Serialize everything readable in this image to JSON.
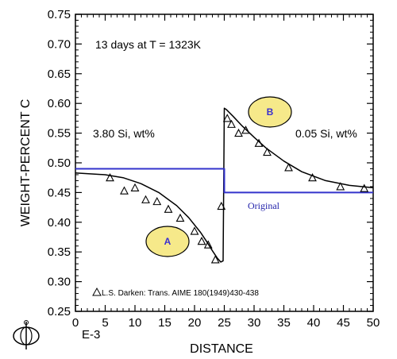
{
  "chart_data": {
    "type": "line",
    "xlabel": "DISTANCE",
    "x_scale_label": "E-3",
    "ylabel": "WEIGHT-PERCENT C",
    "xlim": [
      0,
      50
    ],
    "ylim": [
      0.25,
      0.75
    ],
    "x_ticks": [
      "0",
      "5",
      "10",
      "15",
      "20",
      "25",
      "30",
      "35",
      "40",
      "45",
      "50"
    ],
    "y_ticks": [
      "0.25",
      "0.30",
      "0.35",
      "0.40",
      "0.45",
      "0.50",
      "0.55",
      "0.60",
      "0.65",
      "0.70",
      "0.75"
    ],
    "series": [
      {
        "name": "",
        "style": "curve",
        "color": "#000000",
        "x": [
          0,
          5,
          8,
          11,
          14,
          17,
          19,
          21,
          22,
          23,
          23.8,
          24.4,
          24.8,
          25,
          25.3,
          26.5,
          28,
          30,
          32,
          35,
          38,
          42,
          46,
          50
        ],
        "y": [
          0.483,
          0.48,
          0.475,
          0.465,
          0.45,
          0.428,
          0.408,
          0.383,
          0.368,
          0.352,
          0.34,
          0.333,
          0.335,
          0.592,
          0.59,
          0.578,
          0.562,
          0.543,
          0.525,
          0.503,
          0.485,
          0.47,
          0.462,
          0.458
        ]
      },
      {
        "name": "",
        "style": "step",
        "color": "#3333cc",
        "x": [
          0,
          25,
          25,
          50
        ],
        "y": [
          0.49,
          0.49,
          0.45,
          0.45
        ]
      },
      {
        "name": "L.S. Darken: Trans. AIME 180(1949)430-438",
        "style": "triangles",
        "color": "#000000",
        "x": [
          5.8,
          8.2,
          10,
          11.8,
          13.7,
          15.6,
          17.6,
          20,
          21.2,
          22.3,
          23.5,
          24.5,
          25.5,
          26.2,
          27.4,
          28.6,
          30.8,
          32.2,
          35.8,
          39.8,
          44.5,
          48.5
        ],
        "y": [
          0.475,
          0.453,
          0.458,
          0.438,
          0.435,
          0.422,
          0.407,
          0.385,
          0.368,
          0.362,
          0.337,
          0.427,
          0.575,
          0.565,
          0.55,
          0.555,
          0.533,
          0.518,
          0.492,
          0.475,
          0.46,
          0.457
        ]
      }
    ],
    "annotations": {
      "condition": "13 days at T = 1323K",
      "left_alloy": "3.80 Si, wt%",
      "right_alloy": "0.05 Si, wt%",
      "original_label": "Original",
      "reference": "L.S. Darken: Trans. AIME 180(1949)430-438",
      "badge_a": "A",
      "badge_b": "B"
    },
    "colors": {
      "curve": "#000000",
      "original": "#3333cc",
      "badge_fill": "#f6e98a",
      "badge_stroke": "#000000"
    },
    "grid": false
  }
}
